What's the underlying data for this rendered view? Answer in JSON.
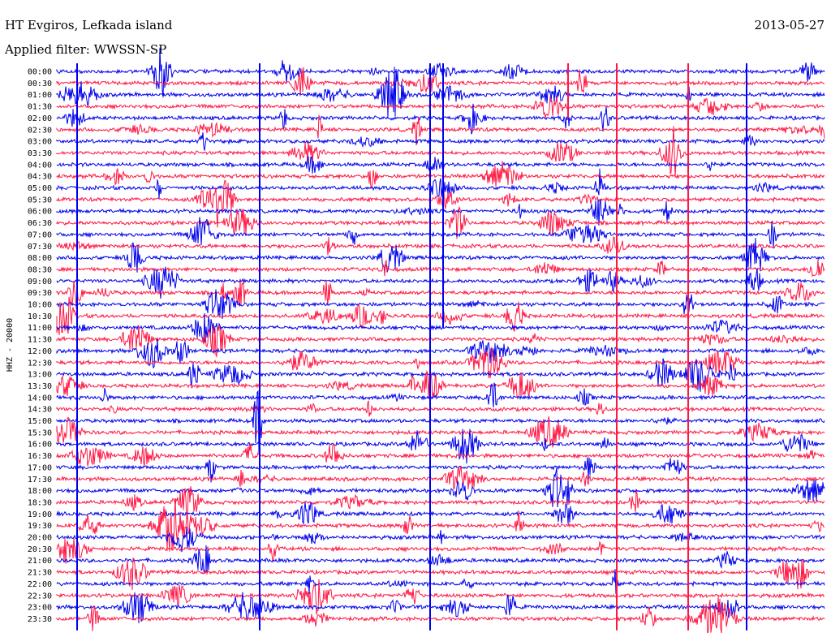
{
  "header": {
    "station": "HT Evgiros, Lefkada island",
    "filter": "Applied filter: WWSSN-SP",
    "date": "2013-05-27"
  },
  "chart_data": {
    "type": "line",
    "title": "HT Evgiros, Lefkada island",
    "subtitle": "Applied filter: WWSSN-SP",
    "date": "2013-05-27",
    "ylabel": "HHZ - 20000",
    "xlabel": "",
    "row_labels": [
      "00:00",
      "00:30",
      "01:00",
      "01:30",
      "02:00",
      "02:30",
      "03:00",
      "03:30",
      "04:00",
      "04:30",
      "05:00",
      "05:30",
      "06:00",
      "06:30",
      "07:00",
      "07:30",
      "08:00",
      "08:30",
      "09:00",
      "09:30",
      "10:00",
      "10:30",
      "11:00",
      "11:30",
      "12:00",
      "12:30",
      "13:00",
      "13:30",
      "14:00",
      "14:30",
      "15:00",
      "15:30",
      "16:00",
      "16:30",
      "17:00",
      "17:30",
      "18:00",
      "18:30",
      "19:00",
      "19:30",
      "20:00",
      "20:30",
      "21:00",
      "21:30",
      "22:00",
      "22:30",
      "23:00",
      "23:30"
    ],
    "series_colors": [
      "#0000ee",
      "#ff1744"
    ],
    "minutes_per_row": 30,
    "grid": false,
    "legend": "none"
  }
}
